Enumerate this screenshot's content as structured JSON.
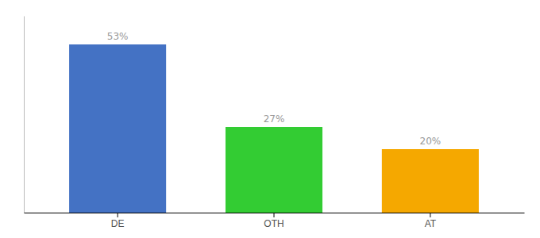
{
  "chart_data": {
    "type": "bar",
    "categories": [
      "DE",
      "OTH",
      "AT"
    ],
    "values": [
      53,
      27,
      20
    ],
    "value_labels": [
      "53%",
      "27%",
      "20%"
    ],
    "colors": [
      "#4472c4",
      "#33cc33",
      "#f5a800"
    ],
    "ylim": [
      0,
      62
    ],
    "data_labels": true,
    "tick_labels": "x"
  }
}
